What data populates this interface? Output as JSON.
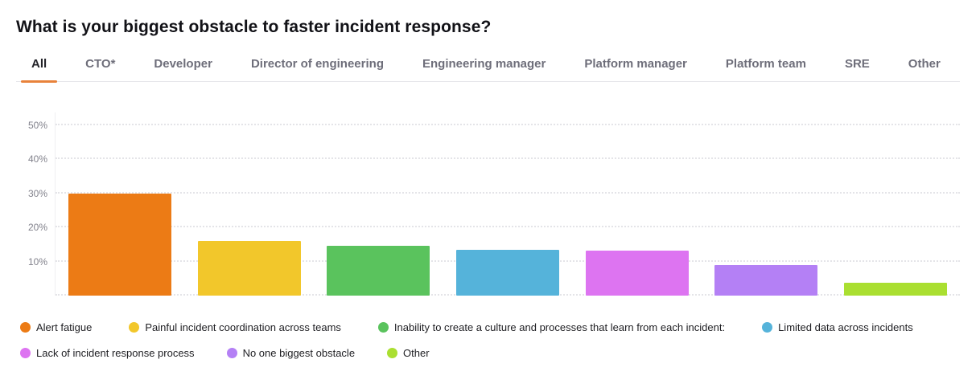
{
  "title": "What is your biggest obstacle to faster incident response?",
  "tabs": [
    "All",
    "CTO*",
    "Developer",
    "Director of engineering",
    "Engineering manager",
    "Platform manager",
    "Platform team",
    "SRE",
    "Other"
  ],
  "active_tab": "All",
  "colors": {
    "accent_underline": "#e8823b",
    "active_tab_text": "#232329",
    "inactive_tab_text": "#6e6e7a",
    "axis_label": "#82828c",
    "gridline": "#e4e4e8"
  },
  "chart_data": {
    "type": "bar",
    "title": "What is your biggest obstacle to faster incident response?",
    "categories": [
      "Alert fatigue",
      "Painful incident coordination across teams",
      "Inability to create a culture and processes that learn from each incident:",
      "Limited data across incidents",
      "Lack of incident response process",
      "No one biggest obstacle",
      "Other"
    ],
    "values": [
      30,
      16,
      14.5,
      13.4,
      13.2,
      9,
      3.8
    ],
    "value_suffix": "%",
    "colors": [
      "#ec7b15",
      "#f2c72b",
      "#5ac35d",
      "#55b3da",
      "#dd74f1",
      "#b480f5",
      "#aadf31"
    ],
    "xlabel": "",
    "ylabel": "",
    "yticks": [
      "10%",
      "20%",
      "30%",
      "40%",
      "50%"
    ],
    "ytick_values": [
      10,
      20,
      30,
      40,
      50
    ],
    "ylim": [
      0,
      53.6
    ],
    "grid": true,
    "legend_position": "bottom",
    "legend_rows": [
      [
        0,
        1,
        2,
        3
      ],
      [
        4,
        5,
        6
      ]
    ]
  }
}
